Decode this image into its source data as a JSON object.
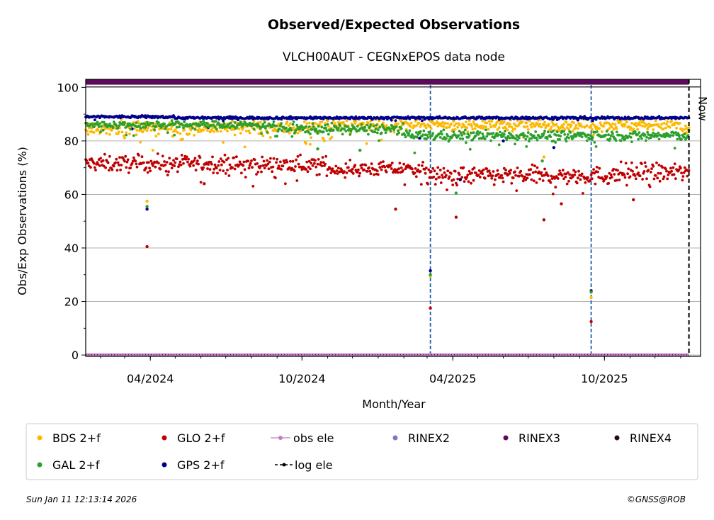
{
  "chart_data": {
    "type": "scatter",
    "title": "Observed/Expected Observations",
    "subtitle": "VLCH00AUT - CEGNxEPOS data node",
    "xlabel": "Month/Year",
    "ylabel": "Obs/Exp Observations (%)",
    "ylim": [
      -0.5,
      103
    ],
    "xlim": [
      "2024-01-14",
      "2026-01-25"
    ],
    "y_ticks": [
      0,
      20,
      40,
      60,
      80,
      100
    ],
    "x_ticks": [
      {
        "date": "2024-04-01",
        "label": "04/2024"
      },
      {
        "date": "2024-10-01",
        "label": "10/2024"
      },
      {
        "date": "2025-04-01",
        "label": "04/2025"
      },
      {
        "date": "2025-10-01",
        "label": "10/2025"
      }
    ],
    "grid": "horizontal",
    "now_label": "Now",
    "now_date": "2026-01-11",
    "vertical_events": [
      "2025-03-05",
      "2025-09-15"
    ],
    "rinex3_band": [
      101,
      103
    ],
    "series": [
      {
        "name": "BDS 2+f",
        "color": "#ffb800",
        "segments": [
          {
            "from": "2024-01-14",
            "to": "2024-06-30",
            "mean": 85,
            "spread": 2.2
          },
          {
            "from": "2024-07-01",
            "to": "2024-10-31",
            "mean": 85,
            "spread": 2.6
          },
          {
            "from": "2024-11-01",
            "to": "2025-01-31",
            "mean": 86,
            "spread": 2.0
          },
          {
            "from": "2025-02-01",
            "to": "2025-12-31",
            "mean": 86,
            "spread": 1.8
          },
          {
            "from": "2026-01-01",
            "to": "2026-01-11",
            "mean": 84,
            "spread": 2.0
          }
        ],
        "outliers": [
          [
            "2024-03-28",
            57.5
          ],
          [
            "2025-03-05",
            29.5
          ],
          [
            "2025-09-15",
            21.5
          ],
          [
            "2024-10-05",
            79.5
          ],
          [
            "2025-07-20",
            74
          ]
        ]
      },
      {
        "name": "GLO 2+f",
        "color": "#c00000",
        "segments": [
          {
            "from": "2024-01-14",
            "to": "2024-06-30",
            "mean": 71.5,
            "spread": 2.6
          },
          {
            "from": "2024-07-01",
            "to": "2024-10-31",
            "mean": 71,
            "spread": 2.6
          },
          {
            "from": "2024-11-01",
            "to": "2025-02-28",
            "mean": 69.5,
            "spread": 2.2
          },
          {
            "from": "2025-03-01",
            "to": "2025-10-15",
            "mean": 67,
            "spread": 2.8
          },
          {
            "from": "2025-10-16",
            "to": "2026-01-11",
            "mean": 68,
            "spread": 3.2
          }
        ],
        "outliers": [
          [
            "2024-03-28",
            40.5
          ],
          [
            "2025-03-05",
            17.5
          ],
          [
            "2025-09-15",
            12.5
          ],
          [
            "2025-01-22",
            54.5
          ],
          [
            "2025-04-05",
            51.5
          ],
          [
            "2025-07-20",
            50.5
          ],
          [
            "2025-08-10",
            56.5
          ],
          [
            "2024-06-05",
            64
          ],
          [
            "2025-11-05",
            58
          ]
        ]
      },
      {
        "name": "GAL 2+f",
        "color": "#2ca02c",
        "segments": [
          {
            "from": "2024-01-14",
            "to": "2024-08-31",
            "mean": 86,
            "spread": 1.2
          },
          {
            "from": "2024-09-01",
            "to": "2025-01-31",
            "mean": 84.5,
            "spread": 1.6
          },
          {
            "from": "2025-02-01",
            "to": "2026-01-11",
            "mean": 82,
            "spread": 1.6
          }
        ],
        "outliers": [
          [
            "2024-03-28",
            55.5
          ],
          [
            "2025-03-05",
            30
          ],
          [
            "2025-09-15",
            23.5
          ],
          [
            "2024-10-20",
            77
          ],
          [
            "2025-04-05",
            60.5
          ],
          [
            "2025-07-18",
            72.5
          ],
          [
            "2024-12-10",
            76.5
          ]
        ]
      },
      {
        "name": "GPS 2+f",
        "color": "#00008b",
        "segments": [
          {
            "from": "2024-01-14",
            "to": "2024-04-30",
            "mean": 89,
            "spread": 0.4
          },
          {
            "from": "2024-05-01",
            "to": "2026-01-11",
            "mean": 88.6,
            "spread": 0.4
          }
        ],
        "outliers": [
          [
            "2024-03-28",
            54.5
          ],
          [
            "2025-03-05",
            31.5
          ],
          [
            "2025-09-15",
            24
          ],
          [
            "2024-03-10",
            84.5
          ],
          [
            "2024-06-10",
            85
          ],
          [
            "2025-02-20",
            81
          ],
          [
            "2025-04-10",
            65.5
          ],
          [
            "2025-06-01",
            80
          ],
          [
            "2025-08-01",
            77.5
          ],
          [
            "2025-12-30",
            82
          ]
        ]
      },
      {
        "name": "obs ele",
        "color": "#c37dc7",
        "value": 0
      },
      {
        "name": "RINEX2",
        "color": "#8174c2"
      },
      {
        "name": "RINEX3",
        "color": "#5c0a5c"
      },
      {
        "name": "RINEX4",
        "color": "#2a0a1e"
      },
      {
        "name": "log ele",
        "color": "#000000"
      }
    ]
  },
  "legend": [
    {
      "label": "BDS 2+f",
      "color": "#ffb800",
      "marker": "dot"
    },
    {
      "label": "GLO 2+f",
      "color": "#c00000",
      "marker": "dot"
    },
    {
      "label": "obs ele",
      "color": "#c37dc7",
      "marker": "line-dot"
    },
    {
      "label": "RINEX2",
      "color": "#8174c2",
      "marker": "dot"
    },
    {
      "label": "RINEX3",
      "color": "#5c0a5c",
      "marker": "dot"
    },
    {
      "label": "RINEX4",
      "color": "#2a0a1e",
      "marker": "dot"
    },
    {
      "label": "GAL 2+f",
      "color": "#2ca02c",
      "marker": "dot"
    },
    {
      "label": "GPS 2+f",
      "color": "#00008b",
      "marker": "dot"
    },
    {
      "label": "log ele",
      "color": "#000000",
      "marker": "dash-dot"
    }
  ],
  "footer": {
    "timestamp": "Sun Jan 11 12:13:14 2026",
    "credit": "©GNSS@ROB"
  }
}
